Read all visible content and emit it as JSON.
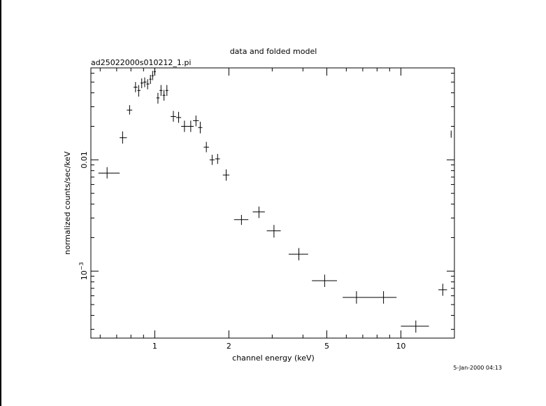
{
  "chart_data": {
    "type": "scatter",
    "title": "data and folded model",
    "subtitle": "ad25022000s010212_1.pi",
    "xlabel": "channel energy (keV)",
    "ylabel": "normalized counts/sec/keV",
    "timestamp": "5-Jan-2000 04:13",
    "x_scale": "log",
    "y_scale": "log",
    "xlim": [
      0.55,
      16.5
    ],
    "ylim": [
      0.00025,
      0.067
    ],
    "x_ticks": [
      {
        "value": 1,
        "label": "1"
      },
      {
        "value": 2,
        "label": "2"
      },
      {
        "value": 5,
        "label": "5"
      },
      {
        "value": 10,
        "label": "10"
      }
    ],
    "y_ticks": [
      {
        "value": 0.01,
        "label": "0.01"
      },
      {
        "value": 0.001,
        "label": "10",
        "exp": "−3"
      }
    ],
    "grid": false,
    "points": [
      {
        "x": 0.64,
        "y": 0.0076,
        "xlo": 0.59,
        "xhi": 0.72,
        "ylo": 0.0068,
        "yhi": 0.0086
      },
      {
        "x": 0.74,
        "y": 0.0158,
        "xlo": 0.72,
        "xhi": 0.77,
        "ylo": 0.014,
        "yhi": 0.018
      },
      {
        "x": 0.79,
        "y": 0.028,
        "xlo": 0.77,
        "xhi": 0.81,
        "ylo": 0.0255,
        "yhi": 0.031
      },
      {
        "x": 0.835,
        "y": 0.045,
        "xlo": 0.82,
        "xhi": 0.85,
        "ylo": 0.0405,
        "yhi": 0.05
      },
      {
        "x": 0.86,
        "y": 0.042,
        "xlo": 0.85,
        "xhi": 0.875,
        "ylo": 0.037,
        "yhi": 0.047
      },
      {
        "x": 0.885,
        "y": 0.049,
        "xlo": 0.875,
        "xhi": 0.9,
        "ylo": 0.044,
        "yhi": 0.054
      },
      {
        "x": 0.91,
        "y": 0.05,
        "xlo": 0.9,
        "xhi": 0.925,
        "ylo": 0.045,
        "yhi": 0.055
      },
      {
        "x": 0.935,
        "y": 0.048,
        "xlo": 0.925,
        "xhi": 0.95,
        "ylo": 0.043,
        "yhi": 0.053
      },
      {
        "x": 0.96,
        "y": 0.053,
        "xlo": 0.95,
        "xhi": 0.97,
        "ylo": 0.048,
        "yhi": 0.058
      },
      {
        "x": 0.98,
        "y": 0.057,
        "xlo": 0.97,
        "xhi": 0.99,
        "ylo": 0.052,
        "yhi": 0.063
      },
      {
        "x": 1.0,
        "y": 0.062,
        "xlo": 0.99,
        "xhi": 1.01,
        "ylo": 0.057,
        "yhi": 0.067
      },
      {
        "x": 1.03,
        "y": 0.036,
        "xlo": 1.015,
        "xhi": 1.045,
        "ylo": 0.032,
        "yhi": 0.04
      },
      {
        "x": 1.06,
        "y": 0.042,
        "xlo": 1.045,
        "xhi": 1.075,
        "ylo": 0.0375,
        "yhi": 0.047
      },
      {
        "x": 1.09,
        "y": 0.038,
        "xlo": 1.075,
        "xhi": 1.105,
        "ylo": 0.034,
        "yhi": 0.0425
      },
      {
        "x": 1.12,
        "y": 0.042,
        "xlo": 1.105,
        "xhi": 1.135,
        "ylo": 0.0375,
        "yhi": 0.047
      },
      {
        "x": 1.19,
        "y": 0.0245,
        "xlo": 1.16,
        "xhi": 1.22,
        "ylo": 0.022,
        "yhi": 0.0275
      },
      {
        "x": 1.25,
        "y": 0.024,
        "xlo": 1.22,
        "xhi": 1.28,
        "ylo": 0.0215,
        "yhi": 0.027
      },
      {
        "x": 1.32,
        "y": 0.02,
        "xlo": 1.28,
        "xhi": 1.36,
        "ylo": 0.0178,
        "yhi": 0.0225
      },
      {
        "x": 1.4,
        "y": 0.02,
        "xlo": 1.36,
        "xhi": 1.44,
        "ylo": 0.0178,
        "yhi": 0.0225
      },
      {
        "x": 1.47,
        "y": 0.0225,
        "xlo": 1.43,
        "xhi": 1.51,
        "ylo": 0.02,
        "yhi": 0.025
      },
      {
        "x": 1.53,
        "y": 0.0195,
        "xlo": 1.5,
        "xhi": 1.56,
        "ylo": 0.0173,
        "yhi": 0.022
      },
      {
        "x": 1.62,
        "y": 0.013,
        "xlo": 1.58,
        "xhi": 1.66,
        "ylo": 0.0117,
        "yhi": 0.0145
      },
      {
        "x": 1.71,
        "y": 0.01,
        "xlo": 1.67,
        "xhi": 1.75,
        "ylo": 0.009,
        "yhi": 0.0111
      },
      {
        "x": 1.8,
        "y": 0.0102,
        "xlo": 1.76,
        "xhi": 1.84,
        "ylo": 0.0092,
        "yhi": 0.0113
      },
      {
        "x": 1.95,
        "y": 0.0073,
        "xlo": 1.89,
        "xhi": 2.01,
        "ylo": 0.0065,
        "yhi": 0.0082
      },
      {
        "x": 2.25,
        "y": 0.0029,
        "xlo": 2.1,
        "xhi": 2.4,
        "ylo": 0.0026,
        "yhi": 0.0032
      },
      {
        "x": 2.65,
        "y": 0.0034,
        "xlo": 2.5,
        "xhi": 2.8,
        "ylo": 0.003,
        "yhi": 0.0038
      },
      {
        "x": 3.05,
        "y": 0.0023,
        "xlo": 2.85,
        "xhi": 3.25,
        "ylo": 0.002,
        "yhi": 0.0026
      },
      {
        "x": 3.85,
        "y": 0.00142,
        "xlo": 3.5,
        "xhi": 4.2,
        "ylo": 0.00125,
        "yhi": 0.00161
      },
      {
        "x": 4.9,
        "y": 0.00082,
        "xlo": 4.35,
        "xhi": 5.5,
        "ylo": 0.00072,
        "yhi": 0.00093
      },
      {
        "x": 6.6,
        "y": 0.00058,
        "xlo": 5.8,
        "xhi": 7.5,
        "ylo": 0.00051,
        "yhi": 0.00066
      },
      {
        "x": 8.5,
        "y": 0.00058,
        "xlo": 7.5,
        "xhi": 9.6,
        "ylo": 0.00051,
        "yhi": 0.00066
      },
      {
        "x": 11.5,
        "y": 0.00032,
        "xlo": 10.0,
        "xhi": 13.0,
        "ylo": 0.00028,
        "yhi": 0.00036
      },
      {
        "x": 14.8,
        "y": 0.00068,
        "xlo": 14.2,
        "xhi": 15.4,
        "ylo": 0.0006,
        "yhi": 0.00077
      },
      {
        "x": 16.0,
        "y": 0.017,
        "xlo": 15.95,
        "xhi": 16.05,
        "ylo": 0.0158,
        "yhi": 0.0183
      }
    ]
  }
}
